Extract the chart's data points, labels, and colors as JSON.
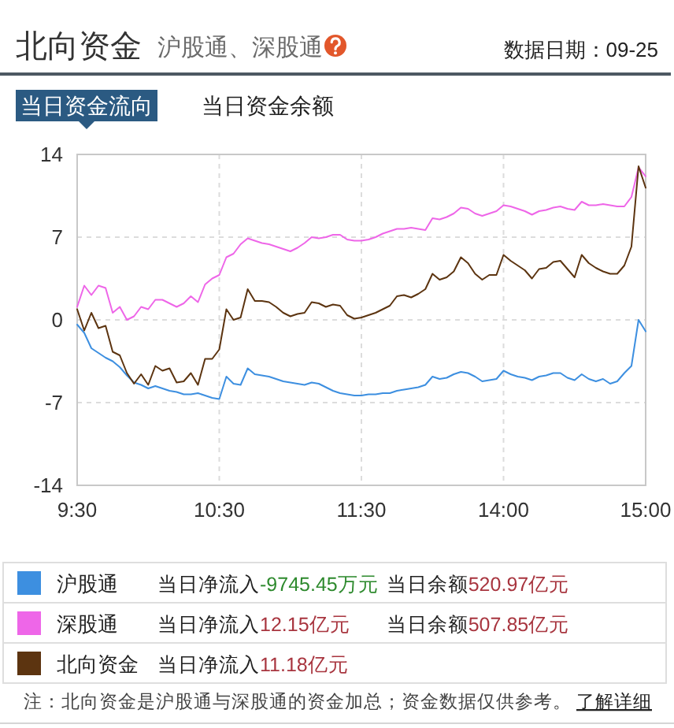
{
  "chart_data": {
    "type": "line",
    "title": "北向资金",
    "subtitle": "沪股通、深股通",
    "categories": [
      "9:30",
      null,
      null,
      null,
      null,
      null,
      null,
      null,
      null,
      null,
      null,
      null,
      null,
      null,
      null,
      null,
      null,
      null,
      null,
      null,
      "10:30",
      null,
      null,
      null,
      null,
      null,
      null,
      null,
      null,
      null,
      null,
      null,
      null,
      null,
      null,
      null,
      null,
      null,
      null,
      null,
      "11:30",
      null,
      null,
      null,
      null,
      null,
      null,
      null,
      null,
      null,
      null,
      null,
      null,
      null,
      null,
      null,
      null,
      null,
      null,
      null,
      "14:00",
      null,
      null,
      null,
      null,
      null,
      null,
      null,
      null,
      null,
      null,
      null,
      null,
      null,
      null,
      null,
      null,
      null,
      null,
      null,
      "15:00"
    ],
    "ylim": [
      -14,
      14
    ],
    "yticks": [
      -14,
      -7,
      0,
      7,
      14
    ],
    "grid": true,
    "legend": "bottom",
    "series": [
      {
        "name": "沪股通",
        "color": "#3d8fe0",
        "values": [
          -0.4,
          -1.1,
          -2.4,
          -2.8,
          -3.2,
          -3.5,
          -4.0,
          -4.7,
          -5.3,
          -5.5,
          -5.8,
          -5.6,
          -5.8,
          -6.0,
          -6.1,
          -6.3,
          -6.3,
          -6.2,
          -6.4,
          -6.6,
          -6.7,
          -4.8,
          -5.4,
          -5.5,
          -4.1,
          -4.6,
          -4.7,
          -4.8,
          -5.0,
          -5.2,
          -5.3,
          -5.4,
          -5.5,
          -5.3,
          -5.4,
          -5.7,
          -6.0,
          -6.2,
          -6.3,
          -6.4,
          -6.4,
          -6.3,
          -6.3,
          -6.2,
          -6.2,
          -6.0,
          -5.9,
          -5.8,
          -5.7,
          -5.5,
          -4.8,
          -5.0,
          -4.9,
          -4.6,
          -4.4,
          -4.5,
          -4.8,
          -5.2,
          -5.1,
          -5.0,
          -4.3,
          -4.6,
          -4.8,
          -4.9,
          -5.1,
          -4.8,
          -4.7,
          -4.5,
          -4.5,
          -4.9,
          -5.1,
          -4.6,
          -5.0,
          -5.2,
          -5.0,
          -5.4,
          -5.2,
          -4.5,
          -3.9,
          0.0,
          -0.97
        ]
      },
      {
        "name": "深股通",
        "color": "#ee66e8",
        "values": [
          1.1,
          2.9,
          2.1,
          2.9,
          2.7,
          0.6,
          1.1,
          0.0,
          0.3,
          1.1,
          0.9,
          1.7,
          1.7,
          1.4,
          1.1,
          1.4,
          2.0,
          1.5,
          3.0,
          3.5,
          3.8,
          5.3,
          5.6,
          6.4,
          6.9,
          6.7,
          6.5,
          6.4,
          6.2,
          6.0,
          5.8,
          6.1,
          6.5,
          7.0,
          6.9,
          7.0,
          7.2,
          7.2,
          6.8,
          6.7,
          6.7,
          6.8,
          7.0,
          7.3,
          7.5,
          7.7,
          7.7,
          7.8,
          7.7,
          7.6,
          8.6,
          8.5,
          8.7,
          9.0,
          9.5,
          9.4,
          9.0,
          8.8,
          9.0,
          9.2,
          9.7,
          9.6,
          9.4,
          9.2,
          8.9,
          9.2,
          9.3,
          9.5,
          9.6,
          9.4,
          9.3,
          10.0,
          9.7,
          9.7,
          9.8,
          9.7,
          9.6,
          9.6,
          10.4,
          12.9,
          12.15
        ]
      },
      {
        "name": "北向资金",
        "color": "#5c3410",
        "values": [
          0.9,
          -0.9,
          0.6,
          -0.7,
          -0.5,
          -2.7,
          -3.0,
          -4.5,
          -5.4,
          -4.6,
          -5.5,
          -3.9,
          -4.3,
          -4.1,
          -5.3,
          -5.2,
          -4.5,
          -5.5,
          -3.3,
          -3.3,
          -2.5,
          0.9,
          0.0,
          0.2,
          2.6,
          1.6,
          1.6,
          1.5,
          1.1,
          0.6,
          0.3,
          0.5,
          0.6,
          1.5,
          1.4,
          1.1,
          1.3,
          1.2,
          0.4,
          0.1,
          0.2,
          0.4,
          0.6,
          0.9,
          1.2,
          2.0,
          2.1,
          1.9,
          2.2,
          2.6,
          3.9,
          3.4,
          3.6,
          4.1,
          5.3,
          4.8,
          3.9,
          3.4,
          3.8,
          3.8,
          5.5,
          5.0,
          4.6,
          4.2,
          3.5,
          4.3,
          4.4,
          4.9,
          5.0,
          4.3,
          3.6,
          5.5,
          4.8,
          4.4,
          4.1,
          3.9,
          3.9,
          4.6,
          6.2,
          13.0,
          11.18
        ]
      }
    ],
    "annotations": [
      "数据日期：09-25",
      "当日资金流向",
      "当日资金余额",
      "当日净流入-9745.45万元",
      "当日余额520.97亿元",
      "当日净流入12.15亿元",
      "当日余额507.85亿元",
      "当日净流入11.18亿元",
      "注：北向资金是沪股通与深股通的资金加总；资金数据仅供参考。",
      "了解详细"
    ]
  }
}
